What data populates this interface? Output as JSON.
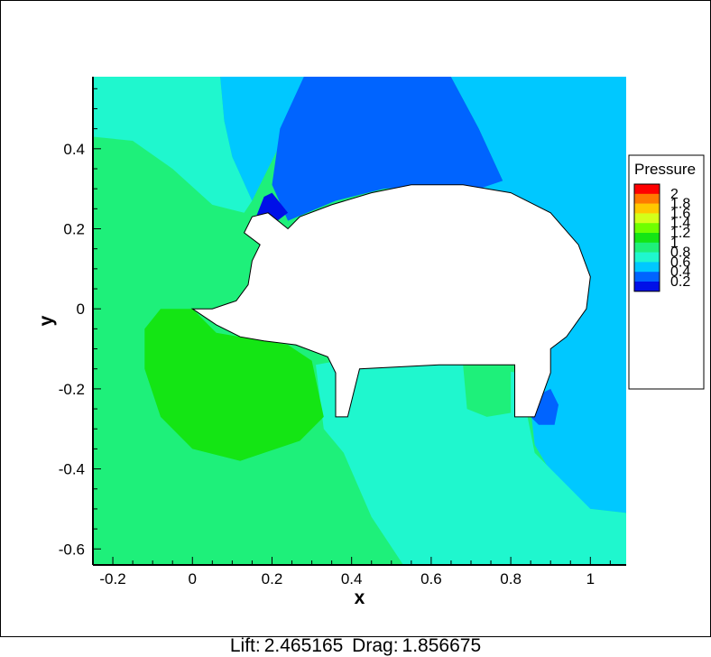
{
  "chart_data": {
    "type": "heatmap",
    "title": "",
    "xlabel": "x",
    "ylabel": "y",
    "xlim": [
      -0.25,
      1.09
    ],
    "ylim": [
      -0.64,
      0.58
    ],
    "x_ticks": [
      -0.2,
      0,
      0.2,
      0.4,
      0.6,
      0.8,
      1
    ],
    "x_tick_labels": [
      "-0.2",
      "0",
      "0.2",
      "0.4",
      "0.6",
      "0.8",
      "1"
    ],
    "y_ticks": [
      -0.6,
      -0.4,
      -0.2,
      0,
      0.2,
      0.4
    ],
    "y_tick_labels": [
      "-0.6",
      "-0.4",
      "-0.2",
      "0",
      "0.2",
      "0.4"
    ],
    "legend": {
      "title": "Pressure",
      "placement": "right",
      "levels": [
        {
          "label": "2",
          "value": 2.0,
          "color": "#ff0000"
        },
        {
          "label": "1.8",
          "value": 1.8,
          "color": "#ff7a00"
        },
        {
          "label": "1.6",
          "value": 1.6,
          "color": "#ffc800"
        },
        {
          "label": "1.4",
          "value": 1.4,
          "color": "#d4ff1a"
        },
        {
          "label": "1.2",
          "value": 1.2,
          "color": "#6fff00"
        },
        {
          "label": "1",
          "value": 1.0,
          "color": "#14e514"
        },
        {
          "label": "0.8",
          "value": 0.8,
          "color": "#1ef07a"
        },
        {
          "label": "0.6",
          "value": 0.6,
          "color": "#1ff7ce"
        },
        {
          "label": "0.4",
          "value": 0.4,
          "color": "#00c8ff"
        },
        {
          "label": "0.2",
          "value": 0.2,
          "color": "#0064ff"
        },
        {
          "label": "",
          "value": 0.0,
          "color": "#0010e8"
        }
      ]
    },
    "regions": [
      {
        "level": 0.6,
        "color": "#1ff7ce",
        "points": [
          [
            -0.25,
            0.58
          ],
          [
            0.07,
            0.58
          ],
          [
            0.08,
            0.47
          ],
          [
            0.1,
            0.38
          ],
          [
            0.15,
            0.27
          ],
          [
            0.13,
            0.24
          ],
          [
            0.05,
            0.26
          ],
          [
            -0.05,
            0.35
          ],
          [
            -0.15,
            0.42
          ],
          [
            -0.25,
            0.43
          ]
        ]
      },
      {
        "level": 0.4,
        "color": "#00c8ff",
        "points": [
          [
            0.07,
            0.58
          ],
          [
            0.28,
            0.58
          ],
          [
            0.23,
            0.43
          ],
          [
            0.18,
            0.33
          ],
          [
            0.15,
            0.27
          ],
          [
            0.1,
            0.38
          ],
          [
            0.08,
            0.47
          ]
        ]
      },
      {
        "level": 0.2,
        "color": "#0064ff",
        "points": [
          [
            0.28,
            0.58
          ],
          [
            0.65,
            0.58
          ],
          [
            0.72,
            0.45
          ],
          [
            0.78,
            0.32
          ],
          [
            0.75,
            0.3
          ],
          [
            0.6,
            0.31
          ],
          [
            0.48,
            0.3
          ],
          [
            0.36,
            0.27
          ],
          [
            0.24,
            0.22
          ],
          [
            0.2,
            0.31
          ],
          [
            0.22,
            0.45
          ]
        ]
      },
      {
        "level": 0.0,
        "color": "#0010e8",
        "points": [
          [
            0.18,
            0.28
          ],
          [
            0.2,
            0.29
          ],
          [
            0.24,
            0.24
          ],
          [
            0.2,
            0.21
          ],
          [
            0.16,
            0.23
          ]
        ]
      },
      {
        "level": 0.4,
        "color": "#00c8ff",
        "points": [
          [
            0.65,
            0.58
          ],
          [
            1.09,
            0.58
          ],
          [
            1.09,
            -0.51
          ],
          [
            1.0,
            -0.5
          ],
          [
            0.92,
            -0.44
          ],
          [
            0.86,
            -0.34
          ],
          [
            0.84,
            -0.16
          ],
          [
            0.75,
            -0.1
          ],
          [
            0.72,
            0.3
          ],
          [
            0.78,
            0.32
          ],
          [
            0.72,
            0.45
          ]
        ]
      },
      {
        "level": 0.0,
        "color": "#0064ff",
        "points": [
          [
            0.84,
            -0.26
          ],
          [
            0.86,
            -0.22
          ],
          [
            0.9,
            -0.2
          ],
          [
            0.92,
            -0.24
          ],
          [
            0.91,
            -0.29
          ],
          [
            0.87,
            -0.29
          ]
        ]
      },
      {
        "level": 0.6,
        "color": "#1ff7ce",
        "points": [
          [
            0.31,
            -0.14
          ],
          [
            0.33,
            -0.3
          ],
          [
            0.38,
            -0.36
          ],
          [
            0.45,
            -0.52
          ],
          [
            0.53,
            -0.64
          ],
          [
            1.09,
            -0.64
          ],
          [
            1.09,
            -0.51
          ],
          [
            1.0,
            -0.5
          ],
          [
            0.86,
            -0.36
          ],
          [
            0.82,
            -0.16
          ],
          [
            0.6,
            -0.13
          ],
          [
            0.42,
            -0.12
          ]
        ]
      },
      {
        "level": 0.8,
        "color": "#1ef07a",
        "points": [
          [
            0.68,
            -0.14
          ],
          [
            0.8,
            -0.12
          ],
          [
            0.8,
            -0.26
          ],
          [
            0.74,
            -0.27
          ],
          [
            0.69,
            -0.25
          ]
        ]
      },
      {
        "level": 1.0,
        "color": "#14e514",
        "points": [
          [
            -0.12,
            -0.05
          ],
          [
            -0.08,
            0.0
          ],
          [
            0.0,
            0.0
          ],
          [
            0.06,
            -0.06
          ],
          [
            0.24,
            -0.09
          ],
          [
            0.3,
            -0.13
          ],
          [
            0.33,
            -0.27
          ],
          [
            0.27,
            -0.33
          ],
          [
            0.12,
            -0.38
          ],
          [
            0.0,
            -0.35
          ],
          [
            -0.08,
            -0.27
          ],
          [
            -0.12,
            -0.15
          ]
        ]
      }
    ],
    "background": {
      "level": 0.8,
      "color": "#1ef07a"
    },
    "body_outline": [
      [
        0.0,
        0.0
      ],
      [
        0.06,
        -0.04
      ],
      [
        0.12,
        -0.07
      ],
      [
        0.18,
        -0.08
      ],
      [
        0.26,
        -0.09
      ],
      [
        0.34,
        -0.12
      ],
      [
        0.36,
        -0.16
      ],
      [
        0.36,
        -0.27
      ],
      [
        0.39,
        -0.27
      ],
      [
        0.42,
        -0.15
      ],
      [
        0.62,
        -0.14
      ],
      [
        0.75,
        -0.14
      ],
      [
        0.81,
        -0.14
      ],
      [
        0.81,
        -0.27
      ],
      [
        0.86,
        -0.27
      ],
      [
        0.9,
        -0.16
      ],
      [
        0.9,
        -0.1
      ],
      [
        0.94,
        -0.07
      ],
      [
        0.99,
        0.0
      ],
      [
        1.0,
        0.08
      ],
      [
        0.97,
        0.16
      ],
      [
        0.9,
        0.24
      ],
      [
        0.8,
        0.29
      ],
      [
        0.68,
        0.31
      ],
      [
        0.55,
        0.31
      ],
      [
        0.45,
        0.29
      ],
      [
        0.35,
        0.26
      ],
      [
        0.27,
        0.23
      ],
      [
        0.24,
        0.2
      ],
      [
        0.19,
        0.24
      ],
      [
        0.15,
        0.23
      ],
      [
        0.13,
        0.19
      ],
      [
        0.17,
        0.16
      ],
      [
        0.15,
        0.12
      ],
      [
        0.14,
        0.06
      ],
      [
        0.11,
        0.02
      ],
      [
        0.05,
        0.0
      ]
    ]
  },
  "footer": {
    "lift_label": "Lift:",
    "lift_value": "2.465165",
    "drag_label": "Drag:",
    "drag_value": "1.856675"
  }
}
